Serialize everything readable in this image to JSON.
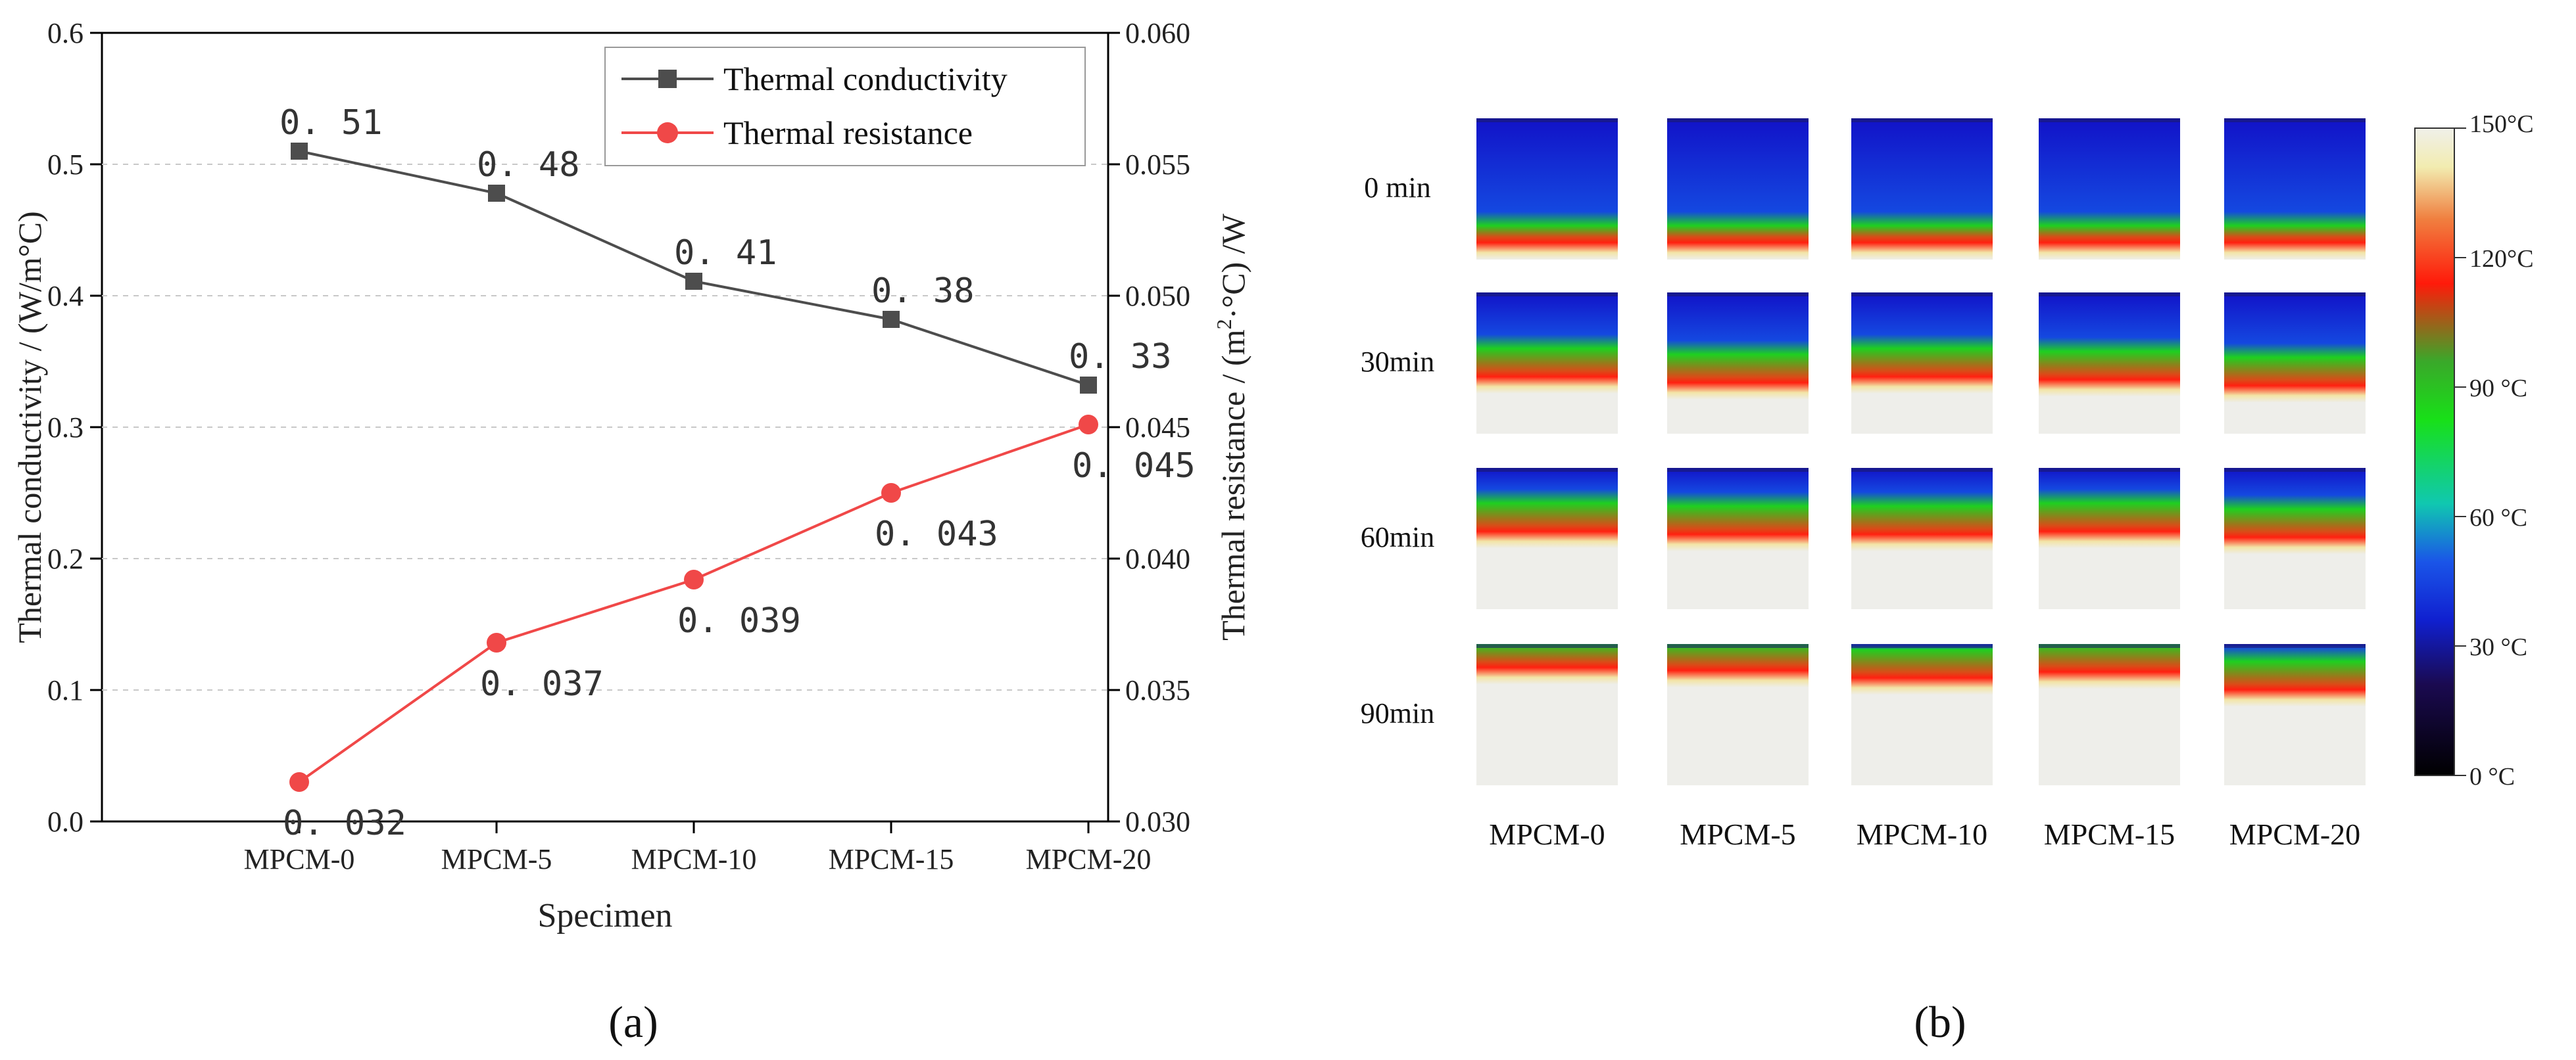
{
  "figure": {
    "label_a": "(a)",
    "label_b": "(b)"
  },
  "chart_data": [
    {
      "type": "line",
      "categories": [
        "MPCM-0",
        "MPCM-5",
        "MPCM-10",
        "MPCM-15",
        "MPCM-20"
      ],
      "xlabel": "Specimen",
      "ylabel_left": "Thermal conductivity / (W/m°C)",
      "ylabel_right_parts": [
        "Thermal resistance / (m",
        "2",
        "·°C) /W"
      ],
      "ylim_left": [
        0.0,
        0.6
      ],
      "yticks_left": [
        "0.0",
        "0.1",
        "0.2",
        "0.3",
        "0.4",
        "0.5",
        "0.6"
      ],
      "ylim_right": [
        0.03,
        0.06
      ],
      "yticks_right": [
        "0.030",
        "0.035",
        "0.040",
        "0.045",
        "0.050",
        "0.055",
        "0.060"
      ],
      "grid": "horizontal dashed",
      "legend_position": "top-right",
      "series": [
        {
          "name": "Thermal conductivity",
          "axis": "left",
          "marker": "square",
          "color": "#4d4d4d",
          "values": [
            0.51,
            0.478,
            0.411,
            0.382,
            0.332
          ],
          "labels": [
            "0. 51",
            "0. 48",
            "0. 41",
            "0. 38",
            "0. 33"
          ]
        },
        {
          "name": "Thermal resistance",
          "axis": "right",
          "marker": "circle",
          "color": "#f04848",
          "values": [
            0.0315,
            0.0368,
            0.0392,
            0.0425,
            0.0451
          ],
          "labels": [
            "0. 032",
            "0. 037",
            "0. 039",
            "0. 043",
            "0. 045"
          ]
        }
      ]
    },
    {
      "type": "heatmap",
      "columns": [
        "MPCM-0",
        "MPCM-5",
        "MPCM-10",
        "MPCM-15",
        "MPCM-20"
      ],
      "rows": [
        "0 min",
        "30min",
        "60min",
        "90min"
      ],
      "colorbar": {
        "range": [
          0,
          150
        ],
        "tick_labels": [
          "150°C",
          "120°C",
          "90 °C",
          "60 °C",
          "30 °C",
          "0  °C"
        ]
      },
      "heat_levels": [
        [
          0.12,
          0.1,
          0.1,
          0.1,
          0.09
        ],
        [
          0.52,
          0.48,
          0.52,
          0.5,
          0.46
        ],
        [
          0.66,
          0.64,
          0.64,
          0.66,
          0.62
        ],
        [
          0.93,
          0.91,
          0.86,
          0.9,
          0.78
        ]
      ]
    }
  ]
}
